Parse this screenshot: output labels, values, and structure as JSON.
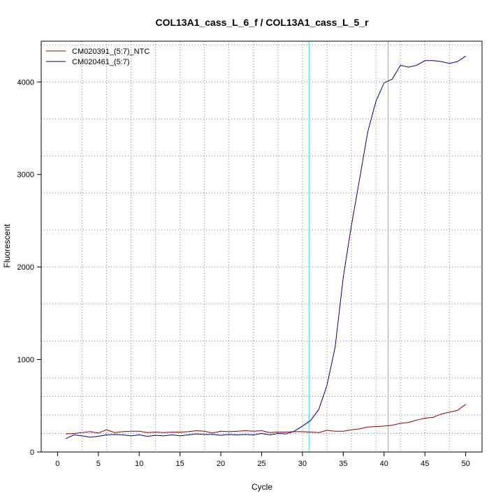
{
  "chart_data": {
    "type": "line",
    "title": "COL13A1_cass_L_6_f / COL13A1_cass_L_5_r",
    "xlabel": "Cycle",
    "ylabel": "Fluorescent",
    "xlim": [
      -2,
      52
    ],
    "ylim": [
      0,
      4440
    ],
    "x_ticks": [
      0,
      5,
      10,
      15,
      20,
      25,
      30,
      35,
      40,
      45,
      50
    ],
    "y_ticks": [
      0,
      1000,
      2000,
      3000,
      4000
    ],
    "x_grid": [
      3,
      6,
      9,
      12,
      15,
      18,
      21,
      24,
      27,
      30,
      33,
      36,
      39,
      42,
      45,
      48
    ],
    "y_grid": [
      200,
      400,
      600,
      800,
      1200,
      1600,
      2000,
      2400,
      2800,
      3200,
      3600,
      4000,
      4400
    ],
    "grid": true,
    "legend_position": "top-left",
    "vertical_lines": [
      {
        "x": 30.8,
        "color": "#40e0e0"
      },
      {
        "x": 40.5,
        "color": "#f08080"
      }
    ],
    "horizontal_lines": [
      {
        "y": 0,
        "color": "#8b0000"
      }
    ],
    "x": [
      1,
      2,
      3,
      4,
      5,
      6,
      7,
      8,
      9,
      10,
      11,
      12,
      13,
      14,
      15,
      16,
      17,
      18,
      19,
      20,
      21,
      22,
      23,
      24,
      25,
      26,
      27,
      28,
      29,
      30,
      31,
      32,
      33,
      34,
      35,
      36,
      37,
      38,
      39,
      40,
      41,
      42,
      43,
      44,
      45,
      46,
      47,
      48,
      49,
      50
    ],
    "series": [
      {
        "name": "CM020391_(5:7)_NTC",
        "color": "#8b0000",
        "values": [
          195,
          200,
          210,
          220,
          205,
          240,
          210,
          220,
          225,
          225,
          210,
          215,
          210,
          215,
          215,
          220,
          230,
          225,
          205,
          225,
          220,
          225,
          230,
          225,
          230,
          210,
          215,
          215,
          220,
          220,
          215,
          210,
          235,
          225,
          225,
          240,
          250,
          270,
          275,
          280,
          290,
          310,
          320,
          345,
          365,
          375,
          410,
          430,
          450,
          515
        ]
      },
      {
        "name": "CM020461_(5:7)",
        "color": "#000080",
        "values": [
          145,
          185,
          175,
          160,
          170,
          185,
          190,
          185,
          175,
          185,
          170,
          180,
          175,
          185,
          175,
          185,
          195,
          190,
          190,
          180,
          190,
          185,
          190,
          185,
          200,
          185,
          200,
          195,
          225,
          280,
          340,
          460,
          720,
          1130,
          1890,
          2450,
          2950,
          3460,
          3790,
          3990,
          4030,
          4180,
          4160,
          4180,
          4230,
          4230,
          4220,
          4200,
          4220,
          4280
        ]
      }
    ]
  }
}
